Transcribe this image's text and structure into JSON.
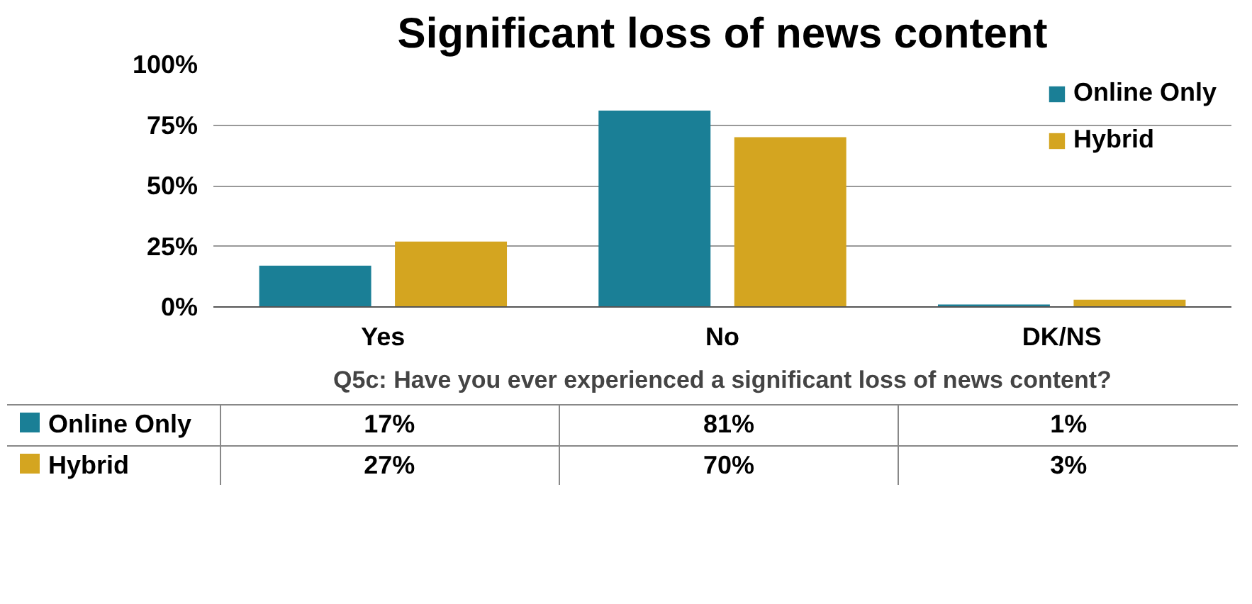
{
  "chart_data": {
    "type": "bar",
    "title": "Significant loss of news content",
    "categories": [
      "Yes",
      "No",
      "DK/NS"
    ],
    "xlabel": "Q5c: Have you ever experienced a significant loss of news content?",
    "series": [
      {
        "name": "Online Only",
        "color": "#1a7f96",
        "values": [
          17,
          81,
          1
        ],
        "value_labels": [
          "17%",
          "81%",
          "1%"
        ]
      },
      {
        "name": "Hybrid",
        "color": "#d4a520",
        "values": [
          27,
          70,
          3
        ],
        "value_labels": [
          "27%",
          "70%",
          "3%"
        ]
      }
    ],
    "ylim": [
      0,
      100
    ],
    "yticks": [
      {
        "value": 0,
        "label": "0%"
      },
      {
        "value": 25,
        "label": "25%"
      },
      {
        "value": 50,
        "label": "50%"
      },
      {
        "value": 75,
        "label": "75%"
      },
      {
        "value": 100,
        "label": "100%"
      }
    ],
    "grid": "y",
    "legend": "top right"
  }
}
